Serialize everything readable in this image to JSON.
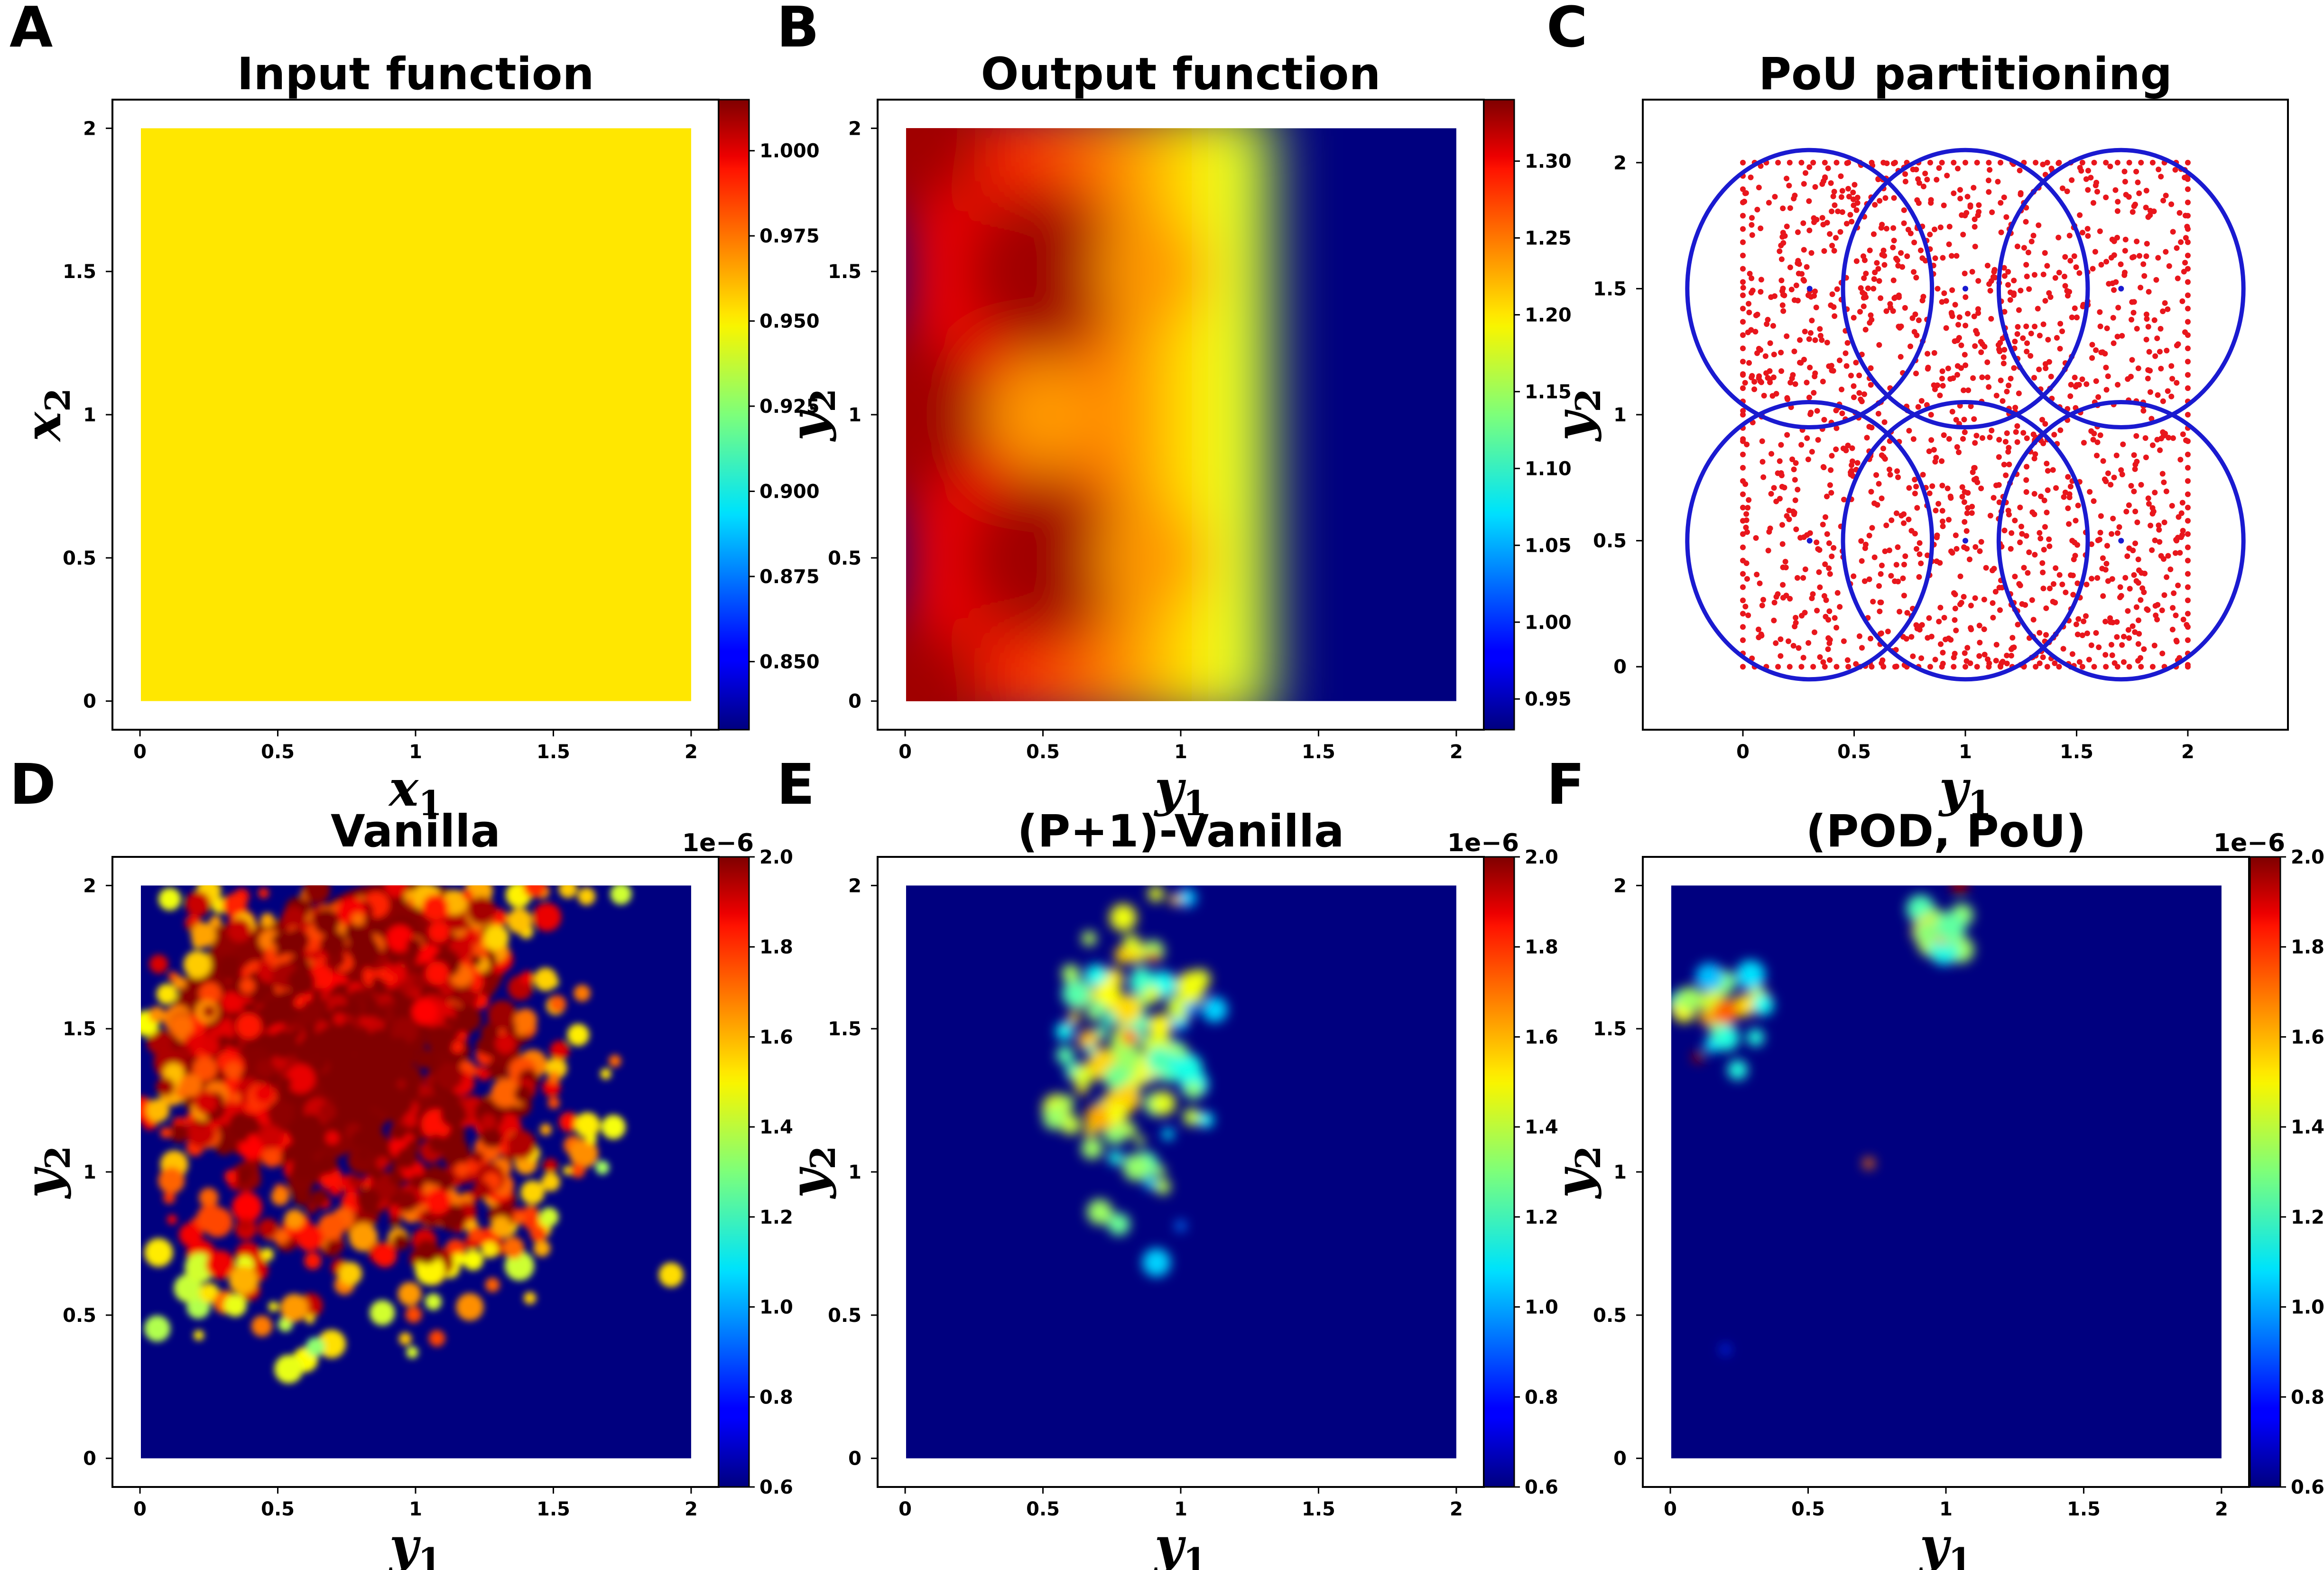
{
  "chart_data": [
    {
      "panel": "A",
      "type": "heatmap",
      "title": "Input function",
      "xlabel": "x",
      "xlabel_sub": "1",
      "ylabel": "x",
      "ylabel_sub": "2",
      "xlim": [
        -0.1,
        2.1
      ],
      "ylim": [
        -0.1,
        2.1
      ],
      "xticks": [
        "0",
        "0.5",
        "1",
        "1.5",
        "2"
      ],
      "yticks": [
        "0",
        "0.5",
        "1",
        "1.5",
        "2"
      ],
      "field": "constant",
      "constant_value": 0.95,
      "colorbar": {
        "min": 0.83,
        "max": 1.015,
        "ticks": [
          "0.850",
          "0.875",
          "0.900",
          "0.925",
          "0.950",
          "0.975",
          "1.000"
        ],
        "offset_label": ""
      }
    },
    {
      "panel": "B",
      "type": "heatmap",
      "title": "Output function",
      "xlabel": "y",
      "xlabel_sub": "1",
      "ylabel": "y",
      "ylabel_sub": "2",
      "xlim": [
        -0.1,
        2.1
      ],
      "ylim": [
        -0.1,
        2.1
      ],
      "xticks": [
        "0",
        "0.5",
        "1",
        "1.5",
        "2"
      ],
      "yticks": [
        "0",
        "0.5",
        "1",
        "1.5",
        "2"
      ],
      "field": "output",
      "colorbar": {
        "min": 0.93,
        "max": 1.34,
        "ticks": [
          "0.95",
          "1.00",
          "1.05",
          "1.10",
          "1.15",
          "1.20",
          "1.25",
          "1.30"
        ],
        "offset_label": ""
      }
    },
    {
      "panel": "C",
      "type": "scatter",
      "title": "PoU partitioning",
      "xlabel": "y",
      "xlabel_sub": "1",
      "ylabel": "y",
      "ylabel_sub": "2",
      "xlim": [
        -0.45,
        2.45
      ],
      "ylim": [
        -0.25,
        2.25
      ],
      "xticks": [
        "0",
        "0.5",
        "1",
        "1.5",
        "2"
      ],
      "yticks": [
        "0",
        "0.5",
        "1",
        "1.5",
        "2"
      ],
      "points": {
        "domain": [
          [
            0,
            2
          ],
          [
            0,
            2
          ]
        ],
        "count": 1500,
        "color": "#e8161c"
      },
      "patches": [
        {
          "center": [
            0.3,
            1.5
          ],
          "radius": 0.55
        },
        {
          "center": [
            1.0,
            1.5
          ],
          "radius": 0.55
        },
        {
          "center": [
            1.7,
            1.5
          ],
          "radius": 0.55
        },
        {
          "center": [
            0.3,
            0.5
          ],
          "radius": 0.55
        },
        {
          "center": [
            1.0,
            0.5
          ],
          "radius": 0.55
        },
        {
          "center": [
            1.7,
            0.5
          ],
          "radius": 0.55
        }
      ],
      "patch_color": "#1a1ad0"
    },
    {
      "panel": "D",
      "type": "heatmap",
      "title": "Vanilla",
      "xlabel": "y",
      "xlabel_sub": "1",
      "ylabel": "y",
      "ylabel_sub": "2",
      "xlim": [
        -0.1,
        2.1
      ],
      "ylim": [
        -0.1,
        2.1
      ],
      "xticks": [
        "0",
        "0.5",
        "1",
        "1.5",
        "2"
      ],
      "yticks": [
        "0",
        "0.5",
        "1",
        "1.5",
        "2"
      ],
      "field": "error_high",
      "colorbar": {
        "min": 0.6,
        "max": 2.0,
        "ticks": [
          "0.6",
          "0.8",
          "1.0",
          "1.2",
          "1.4",
          "1.6",
          "1.8",
          "2.0"
        ],
        "offset_label": "1e−6"
      }
    },
    {
      "panel": "E",
      "type": "heatmap",
      "title": "(P+1)-Vanilla",
      "xlabel": "y",
      "xlabel_sub": "1",
      "ylabel": "y",
      "ylabel_sub": "2",
      "xlim": [
        -0.1,
        2.1
      ],
      "ylim": [
        -0.1,
        2.1
      ],
      "xticks": [
        "0",
        "0.5",
        "1",
        "1.5",
        "2"
      ],
      "yticks": [
        "0",
        "0.5",
        "1",
        "1.5",
        "2"
      ],
      "field": "error_mid",
      "colorbar": {
        "min": 0.6,
        "max": 2.0,
        "ticks": [
          "0.6",
          "0.8",
          "1.0",
          "1.2",
          "1.4",
          "1.6",
          "1.8",
          "2.0"
        ],
        "offset_label": "1e−6"
      }
    },
    {
      "panel": "F",
      "type": "heatmap",
      "title": "(POD, PoU)",
      "xlabel": "y",
      "xlabel_sub": "1",
      "ylabel": "y",
      "ylabel_sub": "2",
      "xlim": [
        -0.1,
        2.1
      ],
      "ylim": [
        -0.1,
        2.1
      ],
      "xticks": [
        "0",
        "0.5",
        "1",
        "1.5",
        "2"
      ],
      "yticks": [
        "0",
        "0.5",
        "1",
        "1.5",
        "2"
      ],
      "field": "error_low",
      "colorbar": {
        "min": 0.6,
        "max": 2.0,
        "ticks": [
          "0.6",
          "0.8",
          "1.0",
          "1.2",
          "1.4",
          "1.6",
          "1.8",
          "2.0"
        ],
        "offset_label": "1e−6"
      }
    }
  ],
  "colormap": "jet"
}
